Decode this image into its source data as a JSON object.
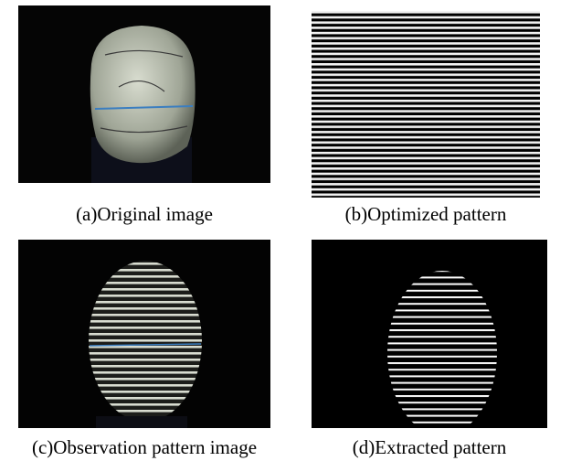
{
  "figures": [
    {
      "caption": "(a)Original image"
    },
    {
      "caption": "(b)Optimized pattern"
    },
    {
      "caption": "(c)Observation pattern image"
    },
    {
      "caption": "(d)Extracted pattern"
    }
  ]
}
